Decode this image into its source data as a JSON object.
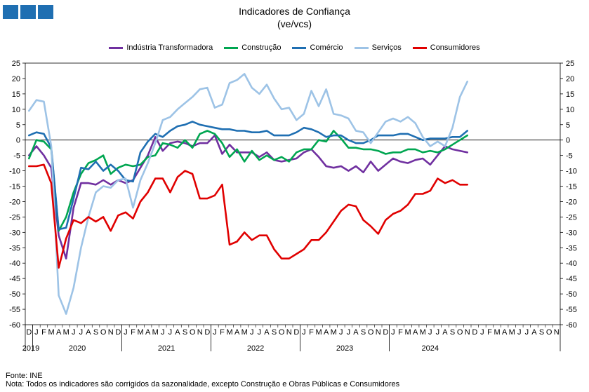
{
  "header": {
    "title": "Indicadores de Confiança",
    "subtitle": "(ve/vcs)"
  },
  "footer": {
    "source": "Fonte: INE",
    "note": "Nota: Todos os indicadores são corrigidos da sazonalidade, excepto Construção e Obras Públicas e Consumidores"
  },
  "chart_data": {
    "type": "line",
    "title": "Indicadores de Confiança",
    "subtitle": "(ve/vcs)",
    "ylim": [
      -60,
      25
    ],
    "yticks": [
      25,
      20,
      15,
      10,
      5,
      0,
      -5,
      -10,
      -15,
      -20,
      -25,
      -30,
      -35,
      -40,
      -45,
      -50,
      -55,
      -60
    ],
    "month_labels": [
      "D",
      "J",
      "F",
      "M",
      "A",
      "M",
      "J",
      "J",
      "A",
      "S",
      "O",
      "N",
      "D",
      "J",
      "F",
      "M",
      "A",
      "M",
      "J",
      "J",
      "A",
      "S",
      "O",
      "N",
      "D",
      "J",
      "F",
      "M",
      "A",
      "M",
      "J",
      "J",
      "A",
      "S",
      "O",
      "N",
      "D",
      "J",
      "F",
      "M",
      "A",
      "M",
      "J",
      "J",
      "A",
      "S",
      "O",
      "N",
      "D",
      "J",
      "F",
      "M",
      "A",
      "M",
      "J",
      "J",
      "A",
      "S",
      "O",
      "N",
      "D",
      "J",
      "F",
      "M",
      "A",
      "M",
      "J",
      "J",
      "A",
      "S",
      "O",
      "N"
    ],
    "years": [
      {
        "label": "2019",
        "start": 0,
        "end": 1
      },
      {
        "label": "2020",
        "start": 1,
        "end": 13
      },
      {
        "label": "2021",
        "start": 13,
        "end": 25
      },
      {
        "label": "2022",
        "start": 25,
        "end": 37
      },
      {
        "label": "2023",
        "start": 37,
        "end": 49
      },
      {
        "label": "2024",
        "start": 49,
        "end": 60
      }
    ],
    "grid": false,
    "legend_position": "top-center",
    "series": [
      {
        "name": "Indústria Transformadora",
        "color": "#7030a0",
        "values": [
          -5,
          -2,
          -5,
          -9,
          -31,
          -38.5,
          -22,
          -14,
          -14,
          -14.5,
          -13,
          -14.5,
          -13,
          -14,
          -13,
          -9,
          -5,
          1,
          -3.5,
          -1,
          -0.5,
          -1,
          -2,
          -1,
          -1,
          1.5,
          -4.5,
          -1.5,
          -4,
          -4,
          -4,
          -5.5,
          -4,
          -6.5,
          -7,
          -6.5,
          -6,
          -4,
          -3,
          -5.5,
          -8.5,
          -9,
          -8.5,
          -10,
          -8.5,
          -10.5,
          -7,
          -10,
          -8,
          -6,
          -7,
          -7.5,
          -6.5,
          -6,
          -8,
          -5,
          -2,
          -3,
          -3.5,
          -4
        ]
      },
      {
        "name": "Construção",
        "color": "#00a651",
        "values": [
          -6,
          0,
          -0.5,
          -3,
          -29.5,
          -25,
          -17,
          -11,
          -7.5,
          -6.5,
          -5,
          -11,
          -9,
          -8,
          -8.5,
          -8,
          -5.5,
          -5,
          -1,
          -1.5,
          -2.5,
          0,
          -2.5,
          2,
          3,
          2,
          -1,
          -5.5,
          -3,
          -7,
          -3.5,
          -6.5,
          -5,
          -6.5,
          -5.5,
          -7,
          -4,
          -3,
          -3,
          0,
          -0.5,
          3,
          0.5,
          -2.5,
          -2.5,
          -3,
          -3,
          -3.5,
          -4.5,
          -4,
          -4,
          -3,
          -3,
          -4,
          -3.5,
          -4,
          -3,
          -1.5,
          0,
          1.5
        ]
      },
      {
        "name": "Comércio",
        "color": "#1f6fb2",
        "values": [
          1.5,
          2.5,
          2,
          -2.5,
          -29,
          -28.5,
          -19,
          -9,
          -9.5,
          -7,
          -10,
          -8,
          -10,
          -13,
          -13.5,
          -4,
          -0.5,
          2,
          1,
          3,
          4.5,
          5,
          6,
          5,
          4.5,
          4,
          3.5,
          3.5,
          3,
          3,
          2.5,
          2.5,
          3,
          1.5,
          1.5,
          1.5,
          2.5,
          4,
          3.5,
          2.5,
          1,
          1.5,
          1.5,
          0,
          -1,
          -1,
          0,
          1.5,
          1.5,
          1.5,
          2,
          2,
          1,
          0,
          0.5,
          0.5,
          0.5,
          1,
          1,
          3
        ]
      },
      {
        "name": "Serviços",
        "color": "#9dc3e6",
        "values": [
          9.5,
          13,
          12.5,
          -2,
          -50.5,
          -56.5,
          -48,
          -35,
          -25,
          -17,
          -15,
          -15.5,
          -13,
          -12.5,
          -22,
          -13,
          -7.5,
          -1,
          6.5,
          7.5,
          10,
          12,
          14,
          16.5,
          17,
          10.5,
          11.5,
          18.5,
          19.5,
          21.5,
          17,
          15,
          18,
          13.5,
          10,
          10.5,
          6.5,
          8.5,
          16,
          11,
          16.5,
          8.5,
          8,
          7,
          3,
          2.5,
          -1,
          2.5,
          6,
          7,
          6,
          7.5,
          5.5,
          1,
          -2,
          -0.5,
          -2,
          4,
          14,
          19
        ]
      },
      {
        "name": "Consumidores",
        "color": "#e00000",
        "values": [
          -8.5,
          -8.5,
          -8,
          -14,
          -41.5,
          -32,
          -26,
          -27,
          -25,
          -26.5,
          -25,
          -29.5,
          -24.5,
          -23.5,
          -25.5,
          -20,
          -17,
          -12.5,
          -12.5,
          -17,
          -12,
          -10,
          -11,
          -19,
          -19,
          -18,
          -14.5,
          -34,
          -33,
          -30,
          -32.5,
          -31,
          -31,
          -35.5,
          -38.5,
          -38.5,
          -37,
          -35.5,
          -32.5,
          -32.5,
          -30,
          -26.5,
          -23,
          -21,
          -21.5,
          -26,
          -28,
          -30.5,
          -26,
          -24,
          -23,
          -21,
          -17.5,
          -17.5,
          -16.5,
          -12.5,
          -14,
          -13,
          -14.5,
          -14.5
        ]
      }
    ]
  }
}
